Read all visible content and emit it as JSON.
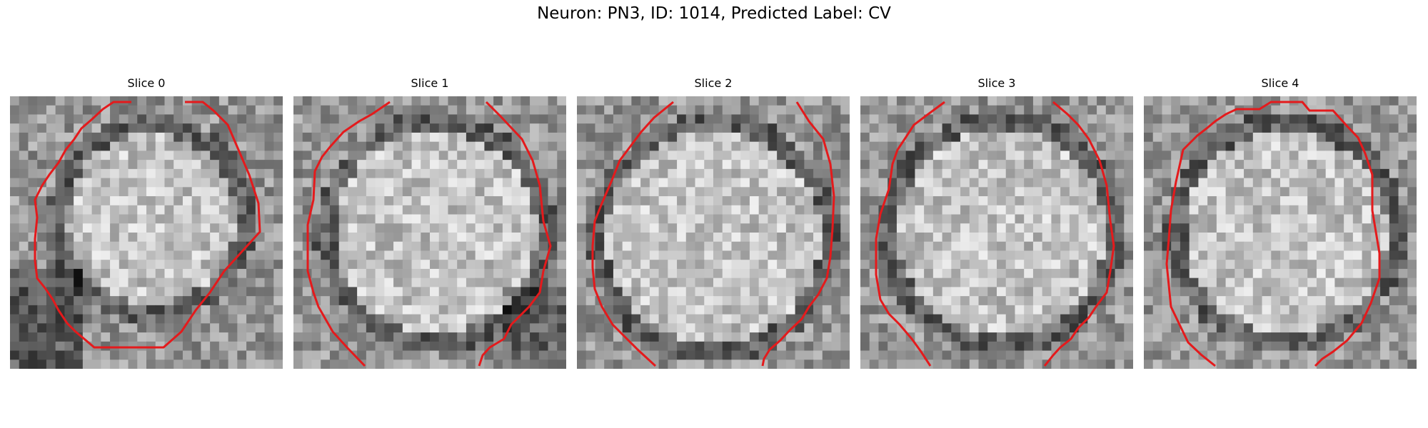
{
  "figure": {
    "title": "Neuron: PN3, ID: 1014, Predicted Label: CV"
  },
  "panels": [
    {
      "title": "Slice 0"
    },
    {
      "title": "Slice 1"
    },
    {
      "title": "Slice 2"
    },
    {
      "title": "Slice 3"
    },
    {
      "title": "Slice 4"
    }
  ],
  "colors": {
    "contour": "#e41a1c",
    "background": "#ffffff"
  }
}
